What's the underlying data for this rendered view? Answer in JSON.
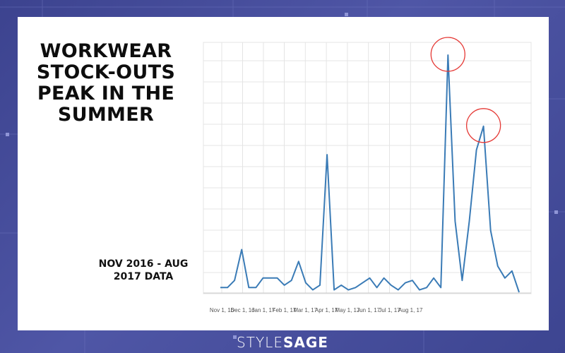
{
  "headline": [
    "WORKWEAR",
    "STOCK-OUTS",
    "PEAK IN THE",
    "SUMMER"
  ],
  "dateline": [
    "NOV 2016 - AUG",
    "2017 DATA"
  ],
  "logo": {
    "part1": "STYLE",
    "part2": "SAGE"
  },
  "colors": {
    "line": "#3a7bb6",
    "highlight": "#e53935",
    "grid": "#e4e4e4",
    "background": "#4a4f9a"
  },
  "chart_data": {
    "type": "line",
    "title": "",
    "xlabel": "",
    "ylabel": "",
    "y_ticks_shown": false,
    "grid": true,
    "ylim": [
      0,
      100
    ],
    "x_tick_labels": [
      "Nov 1, 16",
      "Dec 1, 16",
      "Jan 1, 17",
      "Feb 1, 17",
      "Mar 1, 17",
      "Apr 1, 17",
      "May 1, 17",
      "Jun 1, 17",
      "Jul 1, 17",
      "Aug 1, 17"
    ],
    "series": [
      {
        "values": [
          2,
          2,
          5,
          18,
          2,
          2,
          6,
          6,
          6,
          3,
          5,
          13,
          4,
          1,
          3,
          58,
          1,
          3,
          1,
          2,
          4,
          6,
          2,
          6,
          3,
          1,
          4,
          5,
          1,
          2,
          6,
          2,
          100,
          30,
          5,
          30,
          60,
          70,
          26,
          11,
          6,
          9,
          0
        ]
      }
    ],
    "highlighted_points": [
      32,
      37
    ]
  }
}
